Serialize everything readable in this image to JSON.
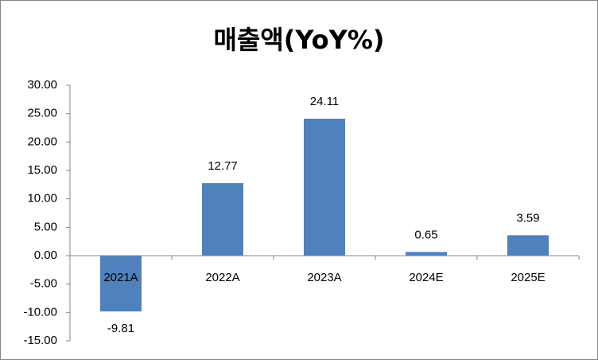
{
  "chart_data": {
    "type": "bar",
    "title": "매출액(YoY%)",
    "categories": [
      "2021A",
      "2022A",
      "2023A",
      "2024E",
      "2025E"
    ],
    "values": [
      -9.81,
      12.77,
      24.11,
      0.65,
      3.59
    ],
    "color": "#4f81bd",
    "ylim": [
      -15,
      30
    ],
    "yticks": [
      {
        "value": -15,
        "label": "-15.00"
      },
      {
        "value": -10,
        "label": "-10.00"
      },
      {
        "value": -5,
        "label": "-5.00"
      },
      {
        "value": 0,
        "label": "0.00"
      },
      {
        "value": 5,
        "label": "5.00"
      },
      {
        "value": 10,
        "label": "10.00"
      },
      {
        "value": 15,
        "label": "15.00"
      },
      {
        "value": 20,
        "label": "20.00"
      },
      {
        "value": 25,
        "label": "25.00"
      },
      {
        "value": 30,
        "label": "30.00"
      }
    ],
    "grid": false
  }
}
